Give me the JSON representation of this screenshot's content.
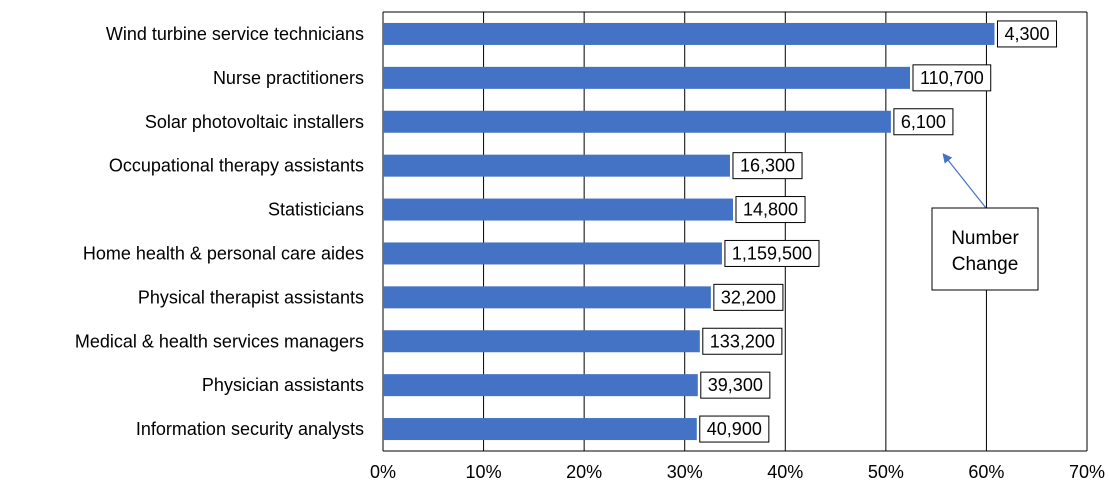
{
  "chart_data": {
    "type": "bar",
    "orientation": "horizontal",
    "title": "",
    "xlabel": "",
    "ylabel": "",
    "categories": [
      "Wind turbine service technicians",
      "Nurse practitioners",
      "Solar photovoltaic installers",
      "Occupational therapy assistants",
      "Statisticians",
      "Home health & personal care aides",
      "Physical therapist assistants",
      "Medical & health services managers",
      "Physician assistants",
      "Information security analysts"
    ],
    "values": [
      0.608,
      0.524,
      0.505,
      0.345,
      0.348,
      0.337,
      0.326,
      0.315,
      0.313,
      0.312
    ],
    "data_labels": [
      "4,300",
      "110,700",
      "6,100",
      "16,300",
      "14,800",
      "1,159,500",
      "32,200",
      "133,200",
      "39,300",
      "40,900"
    ],
    "xlim": [
      0,
      0.7
    ],
    "x_ticks": [
      0,
      0.1,
      0.2,
      0.3,
      0.4,
      0.5,
      0.6,
      0.7
    ],
    "x_tick_labels": [
      "0%",
      "10%",
      "20%",
      "30%",
      "40%",
      "50%",
      "60%",
      "70%"
    ],
    "grid": "vertical gridlines",
    "bar_color": "#4472C4",
    "annotation": {
      "lines": [
        "Number",
        "Change"
      ],
      "points_to_category": "Solar photovoltaic installers"
    }
  }
}
